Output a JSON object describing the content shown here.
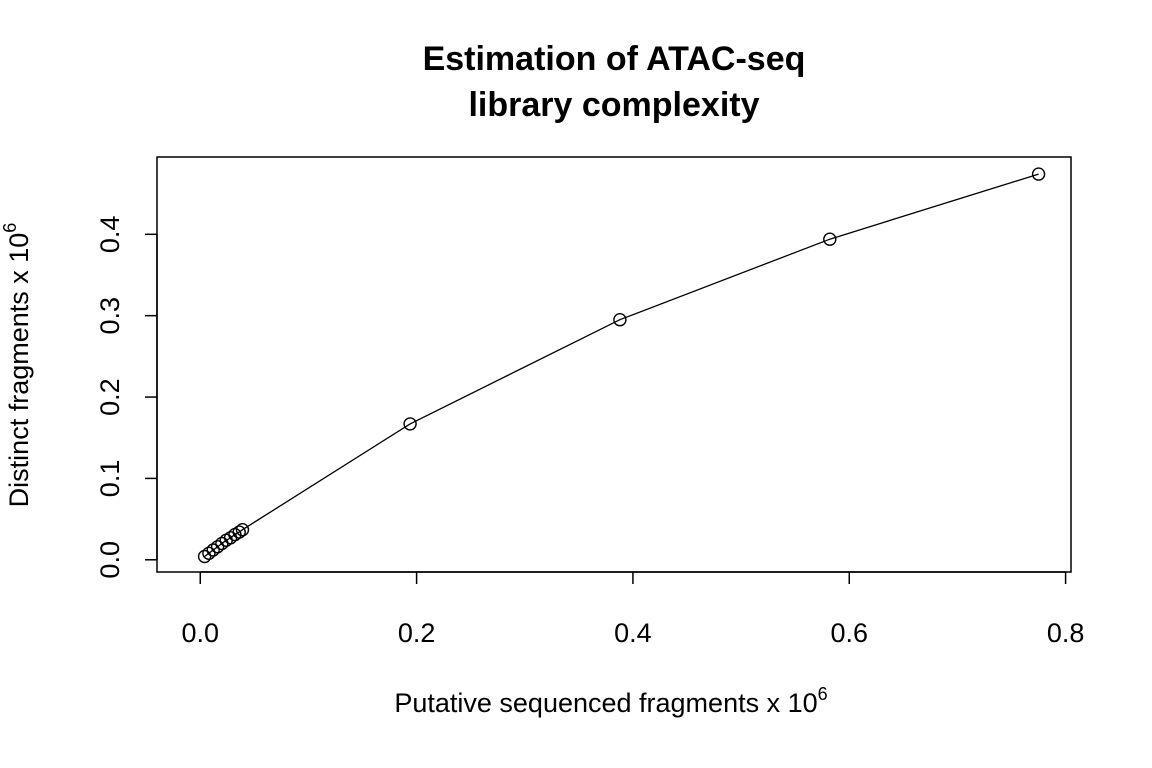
{
  "chart_data": {
    "type": "line",
    "title_line1": "Estimation of ATAC-seq",
    "title_line2": "library complexity",
    "xlabel": "Putative sequenced fragments x 10",
    "xlabel_exponent": "6",
    "ylabel": "Distinct fragments x 10",
    "ylabel_exponent": "6",
    "xlim": [
      -0.04,
      0.805
    ],
    "ylim": [
      -0.015,
      0.495
    ],
    "xticks": [
      0.0,
      0.2,
      0.4,
      0.6,
      0.8
    ],
    "xtick_labels": [
      "0.0",
      "0.2",
      "0.4",
      "0.6",
      "0.8"
    ],
    "yticks": [
      0.0,
      0.1,
      0.2,
      0.3,
      0.4
    ],
    "ytick_labels": [
      "0.0",
      "0.1",
      "0.2",
      "0.3",
      "0.4"
    ],
    "grid": false,
    "markers": "open-circle",
    "x": [
      0.004,
      0.008,
      0.012,
      0.016,
      0.02,
      0.024,
      0.028,
      0.032,
      0.036,
      0.039,
      0.194,
      0.388,
      0.582,
      0.775
    ],
    "y": [
      0.004,
      0.008,
      0.012,
      0.016,
      0.02,
      0.024,
      0.027,
      0.031,
      0.034,
      0.037,
      0.167,
      0.295,
      0.394,
      0.474
    ]
  }
}
